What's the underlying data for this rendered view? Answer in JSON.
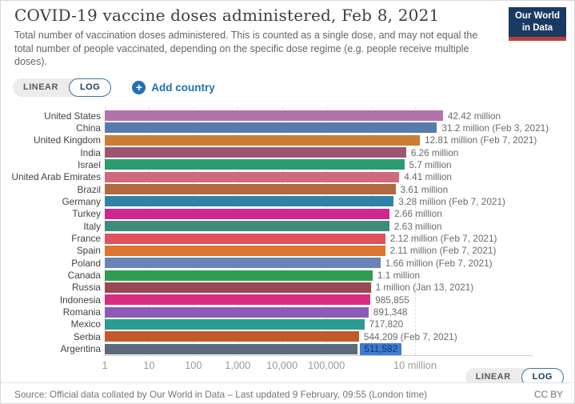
{
  "header": {
    "title": "COVID-19 vaccine doses administered, Feb 8, 2021",
    "subtitle": "Total number of vaccination doses administered. This is counted as a single dose, and may not equal the total number of people vaccinated, depending on the specific dose regime (e.g. people receive multiple doses).",
    "logo": {
      "line1": "Our World",
      "line2": "in Data",
      "bg_color": "#1a3a63",
      "accent_color": "#b5413f"
    }
  },
  "controls": {
    "linear_label": "LINEAR",
    "log_label": "LOG",
    "selected_scale": "LOG",
    "add_country_label": "Add country",
    "accent_blue": "#2271b3"
  },
  "chart_data": {
    "type": "bar",
    "orientation": "horizontal",
    "scale": "log",
    "title": "COVID-19 vaccine doses administered, Feb 8, 2021",
    "xlabel": "",
    "ylabel": "",
    "x_range": [
      1,
      42420000
    ],
    "grid": true,
    "x_ticks": [
      "1",
      "10",
      "100",
      "1,000",
      "10,000",
      "100,000",
      "",
      "10 million"
    ],
    "rows": [
      {
        "country": "United States",
        "value": 42420000,
        "label": "42.42 million",
        "color": "#b272ae",
        "highlighted": false
      },
      {
        "country": "China",
        "value": 31200000,
        "label": "31.2 million (Feb 3, 2021)",
        "color": "#577ca9",
        "highlighted": false
      },
      {
        "country": "United Kingdom",
        "value": 12810000,
        "label": "12.81 million (Feb 7, 2021)",
        "color": "#cb7d35",
        "highlighted": false
      },
      {
        "country": "India",
        "value": 6260000,
        "label": "6.26 million",
        "color": "#9e5573",
        "highlighted": false
      },
      {
        "country": "Israel",
        "value": 5700000,
        "label": "5.7 million",
        "color": "#2b9c71",
        "highlighted": false
      },
      {
        "country": "United Arab Emirates",
        "value": 4410000,
        "label": "4.41 million",
        "color": "#d1697c",
        "highlighted": false
      },
      {
        "country": "Brazil",
        "value": 3610000,
        "label": "3.61 million",
        "color": "#b2693f",
        "highlighted": false
      },
      {
        "country": "Germany",
        "value": 3280000,
        "label": "3.28 million (Feb 7, 2021)",
        "color": "#2f83a8",
        "highlighted": false
      },
      {
        "country": "Turkey",
        "value": 2660000,
        "label": "2.66 million",
        "color": "#d0268f",
        "highlighted": false
      },
      {
        "country": "Italy",
        "value": 2630000,
        "label": "2.63 million",
        "color": "#3b8e79",
        "highlighted": false
      },
      {
        "country": "France",
        "value": 2120000,
        "label": "2.12 million (Feb 7, 2021)",
        "color": "#e0515f",
        "highlighted": false
      },
      {
        "country": "Spain",
        "value": 2110000,
        "label": "2.11 million (Feb 7, 2021)",
        "color": "#d9762f",
        "highlighted": false
      },
      {
        "country": "Poland",
        "value": 1660000,
        "label": "1.66 million (Feb 7, 2021)",
        "color": "#6b83b4",
        "highlighted": false
      },
      {
        "country": "Canada",
        "value": 1100000,
        "label": "1.1 million",
        "color": "#2f9e4f",
        "highlighted": false
      },
      {
        "country": "Russia",
        "value": 1000000,
        "label": "1 million (Jan 13, 2021)",
        "color": "#994953",
        "highlighted": false
      },
      {
        "country": "Indonesia",
        "value": 985855,
        "label": "985,855",
        "color": "#d62e7e",
        "highlighted": false
      },
      {
        "country": "Romania",
        "value": 891348,
        "label": "891,348",
        "color": "#8b5cb5",
        "highlighted": false
      },
      {
        "country": "Mexico",
        "value": 717820,
        "label": "717,820",
        "color": "#2a9c92",
        "highlighted": false
      },
      {
        "country": "Serbia",
        "value": 544209,
        "label": "544,209 (Feb 7, 2021)",
        "color": "#c4592c",
        "highlighted": false
      },
      {
        "country": "Argentina",
        "value": 511582,
        "label": "511,582",
        "color": "#5b6b7d",
        "highlighted": true
      }
    ]
  },
  "footer": {
    "source": "Source: Official data collated by Our World in Data – Last updated 9 February, 09:55 (London time)",
    "license": "CC BY"
  }
}
